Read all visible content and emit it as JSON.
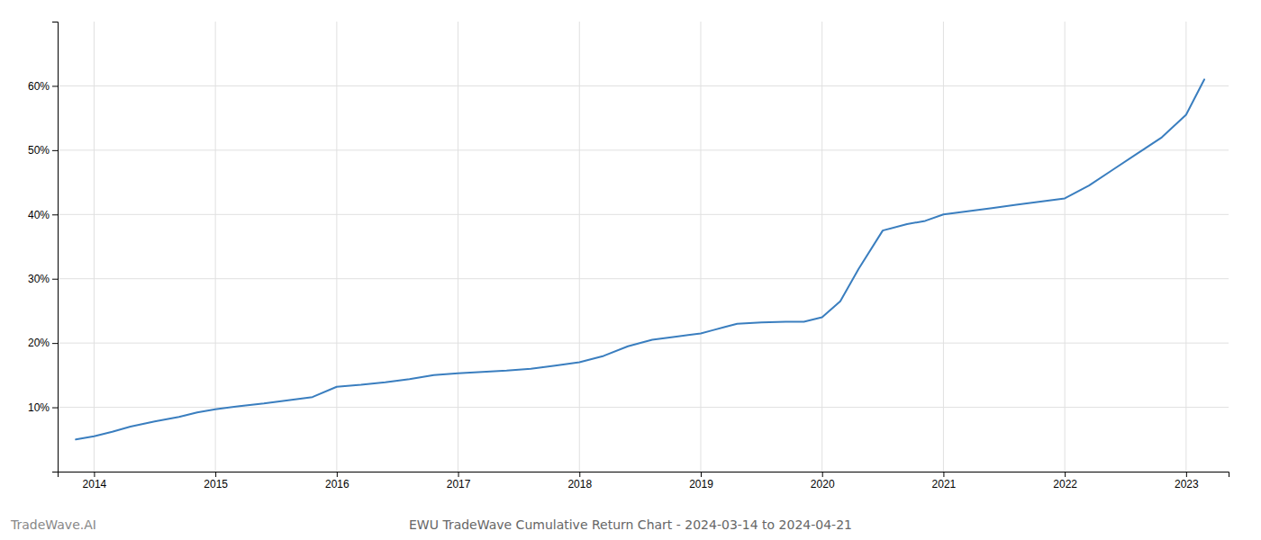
{
  "chart_data": {
    "type": "line",
    "title": "EWU TradeWave Cumulative Return Chart - 2024-03-14 to 2024-04-21",
    "annotations": [
      "TradeWave.AI"
    ],
    "color": "#3a7ebf",
    "x": [
      2013.85,
      2014.0,
      2014.15,
      2014.3,
      2014.5,
      2014.7,
      2014.85,
      2015.0,
      2015.2,
      2015.4,
      2015.6,
      2015.8,
      2016.0,
      2016.2,
      2016.4,
      2016.6,
      2016.8,
      2017.0,
      2017.2,
      2017.4,
      2017.6,
      2017.8,
      2018.0,
      2018.2,
      2018.4,
      2018.6,
      2018.8,
      2019.0,
      2019.1,
      2019.2,
      2019.3,
      2019.5,
      2019.7,
      2019.85,
      2020.0,
      2020.15,
      2020.3,
      2020.5,
      2020.7,
      2020.85,
      2021.0,
      2021.2,
      2021.4,
      2021.6,
      2021.8,
      2022.0,
      2022.2,
      2022.4,
      2022.6,
      2022.8,
      2023.0,
      2023.15
    ],
    "values": [
      5.0,
      5.5,
      6.2,
      7.0,
      7.8,
      8.5,
      9.2,
      9.7,
      10.2,
      10.6,
      11.1,
      11.6,
      13.2,
      13.5,
      13.9,
      14.4,
      15.0,
      15.3,
      15.5,
      15.7,
      16.0,
      16.5,
      17.0,
      18.0,
      19.5,
      20.5,
      21.0,
      21.5,
      22.0,
      22.5,
      23.0,
      23.2,
      23.3,
      23.3,
      24.0,
      26.5,
      31.5,
      37.5,
      38.5,
      39.0,
      40.0,
      40.5,
      41.0,
      41.5,
      42.0,
      42.5,
      44.5,
      47.0,
      49.5,
      52.0,
      55.5,
      61.0
    ],
    "xlim": [
      2013.7,
      2023.35
    ],
    "xticks": [
      2014,
      2015,
      2016,
      2017,
      2018,
      2019,
      2020,
      2021,
      2022,
      2023
    ],
    "ylim": [
      0,
      70
    ],
    "yticks": [
      {
        "value": 10,
        "label": "10%"
      },
      {
        "value": 20,
        "label": "20%"
      },
      {
        "value": 30,
        "label": "30%"
      },
      {
        "value": 40,
        "label": "40%"
      },
      {
        "value": 50,
        "label": "50%"
      },
      {
        "value": 60,
        "label": "60%"
      }
    ],
    "grid": true
  }
}
